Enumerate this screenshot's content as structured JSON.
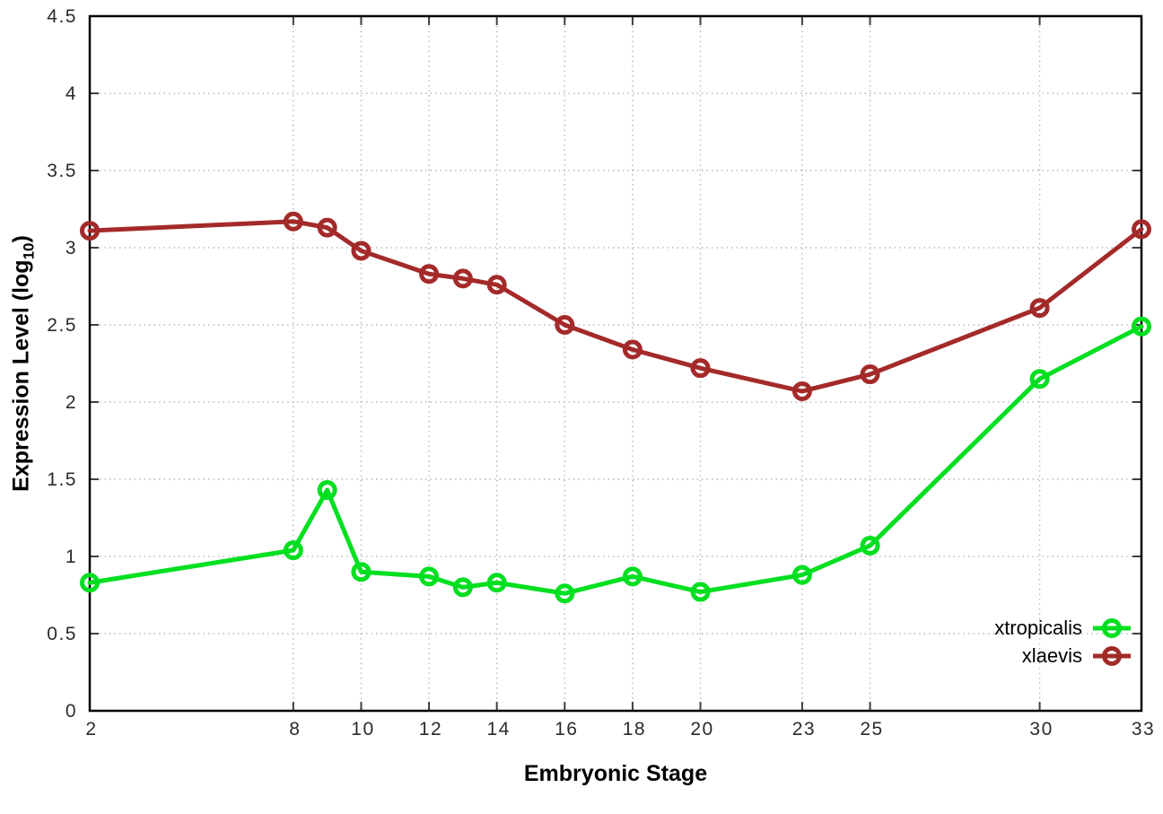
{
  "chart_data": {
    "type": "line",
    "title": "",
    "xlabel": "Embryonic Stage",
    "ylabel": "Expression Level (log10)",
    "ylabel_parts": {
      "prefix": "Expression Level (log",
      "sub": "10",
      "suffix": ")"
    },
    "xlim": [
      2,
      33
    ],
    "ylim": [
      0,
      4.5
    ],
    "grid": true,
    "legend_position": "bottom-right",
    "x": [
      2,
      8,
      9,
      10,
      12,
      13,
      14,
      16,
      18,
      20,
      23,
      25,
      30,
      33
    ],
    "xticks": [
      2,
      8,
      10,
      12,
      14,
      16,
      18,
      20,
      23,
      25,
      30,
      33
    ],
    "xtick_labels": [
      "2",
      "8",
      "10",
      "12",
      "14",
      "16",
      "18",
      "20",
      "23",
      "25",
      "30",
      "33"
    ],
    "yticks": [
      0,
      0.5,
      1,
      1.5,
      2,
      2.5,
      3,
      3.5,
      4,
      4.5
    ],
    "ytick_labels": [
      "0",
      "0.5",
      "1",
      "1.5",
      "2",
      "2.5",
      "3",
      "3.5",
      "4",
      "4.5"
    ],
    "series": [
      {
        "name": "xtropicalis",
        "color": "#00df20",
        "values": [
          0.83,
          1.04,
          1.43,
          0.9,
          0.87,
          0.8,
          0.83,
          0.76,
          0.87,
          0.77,
          0.88,
          1.07,
          2.15,
          2.49
        ]
      },
      {
        "name": "xlaevis",
        "color": "#a42a2a",
        "values": [
          3.11,
          3.17,
          3.13,
          2.98,
          2.83,
          2.8,
          2.76,
          2.5,
          2.34,
          2.22,
          2.07,
          2.18,
          2.61,
          3.12
        ]
      }
    ]
  }
}
